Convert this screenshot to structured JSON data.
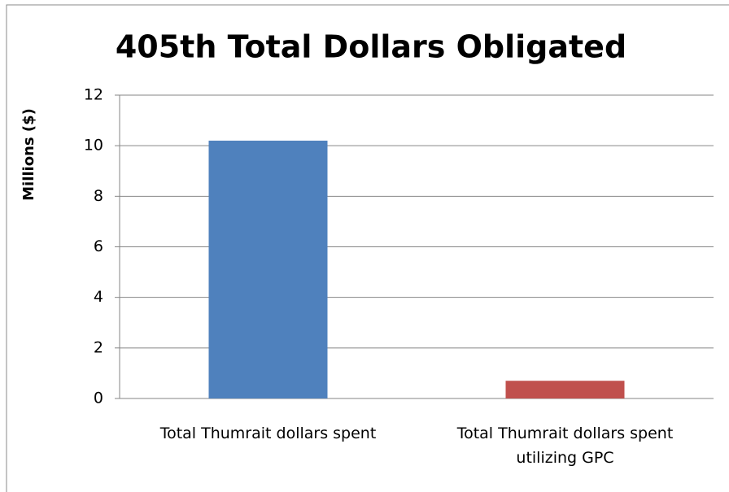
{
  "chart_data": {
    "type": "bar",
    "title": "405th Total Dollars Obligated",
    "y_label": "Millions ($)",
    "categories": [
      "Total Thumrait dollars spent",
      "Total Thumrait dollars spent utilizing GPC"
    ],
    "values": [
      10.2,
      0.7
    ],
    "colors": [
      "#4f81bd",
      "#c0504d"
    ],
    "ylim": [
      0,
      12
    ],
    "yticks": [
      0,
      2,
      4,
      6,
      8,
      10,
      12
    ],
    "grid": true
  }
}
